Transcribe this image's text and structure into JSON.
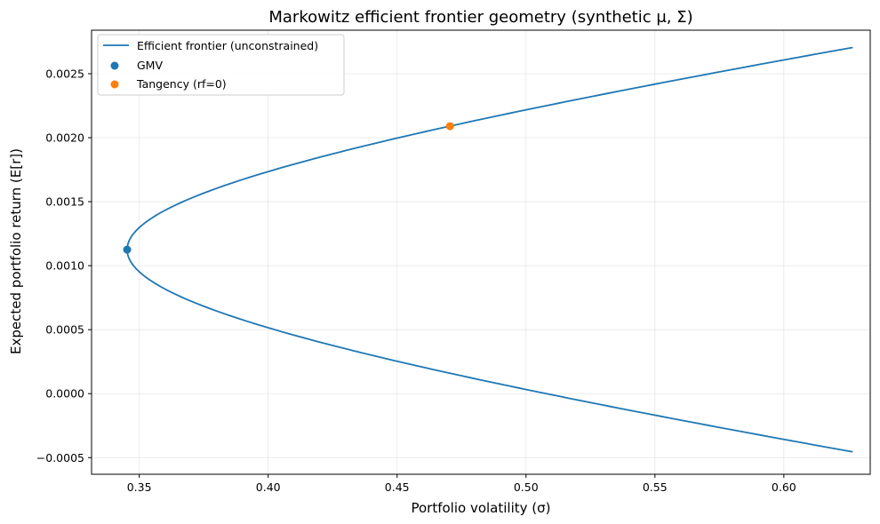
{
  "chart_data": {
    "type": "line",
    "title": "Markowitz efficient frontier geometry (synthetic μ, Σ)",
    "xlabel": "Portfolio volatility  (σ)",
    "ylabel": "Expected portfolio return  (E[r])",
    "xlim": [
      0.3315,
      0.6335
    ],
    "ylim": [
      -0.00063,
      0.00284
    ],
    "xticks": [
      0.35,
      0.4,
      0.45,
      0.5,
      0.55,
      0.6
    ],
    "xtick_labels": [
      "0.35",
      "0.40",
      "0.45",
      "0.50",
      "0.55",
      "0.60"
    ],
    "yticks": [
      -0.0005,
      0.0,
      0.0005,
      0.001,
      0.0015,
      0.002,
      0.0025
    ],
    "ytick_labels": [
      "−0.0005",
      "0.0000",
      "0.0005",
      "0.0010",
      "0.0015",
      "0.0020",
      "0.0025"
    ],
    "grid": true,
    "legend_position": "top-left",
    "frontier": {
      "label": "Efficient frontier (unconstrained)",
      "color": "#1f77b4",
      "gmv": [
        0.3453,
        0.001125
      ],
      "r_min": -0.000455,
      "r_max": 0.002705,
      "sigma_at_extremes": 0.6267
    },
    "points": [
      {
        "label": "GMV",
        "x": 0.3453,
        "y": 0.001125,
        "color": "#1f77b4"
      },
      {
        "label": "Tangency (rf=0)",
        "x": 0.4705,
        "y": 0.00209,
        "color": "#ff7f0e"
      }
    ]
  }
}
